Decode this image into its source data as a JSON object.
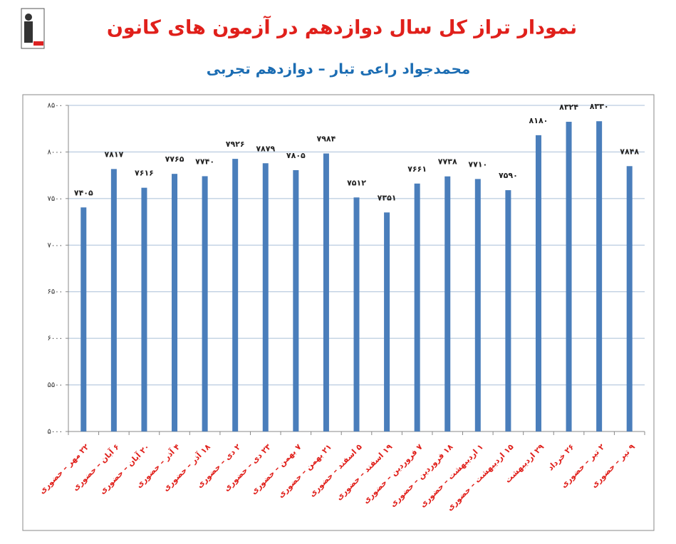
{
  "chart_data": {
    "type": "bar",
    "title": "نمودار تراز کل سال دوازدهم در آزمون های کانون",
    "subtitle": "محمدجواد راعی تبار – دوازدهم تجربی",
    "categories": [
      "۲۲ مهر – حضوری",
      "۶ آبان – حضوری",
      "۲۰ آبان – حضوری",
      "۴ آذر – حضوری",
      "۱۸ آذر – حضوری",
      "۲ دی – حضوری",
      "۲۳ دی – حضوری",
      "۷ بهمن – حضوری",
      "۲۱ بهمن – حضوری",
      "۵ اسفند – حضوری",
      "۱۹ اسفند – حضوری",
      "۷ فروردین – حضوری",
      "۱۸ فروردین – حضوری",
      "۱ اردیبهشت – حضوری",
      "۱۵ اردیبهشت – حضوری",
      "۲۹ اردیبهشت",
      "۲۶ خرداد",
      "۲ تیر – حضوری",
      "۹ تیر – حضوری"
    ],
    "values": [
      7405,
      7817,
      7616,
      7765,
      7740,
      7926,
      7879,
      7805,
      7984,
      7512,
      7351,
      7661,
      7738,
      7710,
      7590,
      8180,
      8324,
      8330,
      7848
    ],
    "value_labels": [
      "۷۴۰۵",
      "۷۸۱۷",
      "۷۶۱۶",
      "۷۷۶۵",
      "۷۷۴۰",
      "۷۹۲۶",
      "۷۸۷۹",
      "۷۸۰۵",
      "۷۹۸۴",
      "۷۵۱۲",
      "۷۳۵۱",
      "۷۶۶۱",
      "۷۷۳۸",
      "۷۷۱۰",
      "۷۵۹۰",
      "۸۱۸۰",
      "۸۳۲۴",
      "۸۳۳۰",
      "۷۸۴۸"
    ],
    "color": "#4a7ebb",
    "ylim": [
      5000,
      8500
    ],
    "yticks": [
      {
        "value": 5000,
        "label": "۵۰۰۰"
      },
      {
        "value": 5500,
        "label": "۵۵۰۰"
      },
      {
        "value": 6000,
        "label": "۶۰۰۰"
      },
      {
        "value": 6500,
        "label": "۶۵۰۰"
      },
      {
        "value": 7000,
        "label": "۷۰۰۰"
      },
      {
        "value": 7500,
        "label": "۷۵۰۰"
      },
      {
        "value": 8000,
        "label": "۸۰۰۰"
      },
      {
        "value": 8500,
        "label": "۸۵۰۰"
      }
    ],
    "grid": true
  }
}
